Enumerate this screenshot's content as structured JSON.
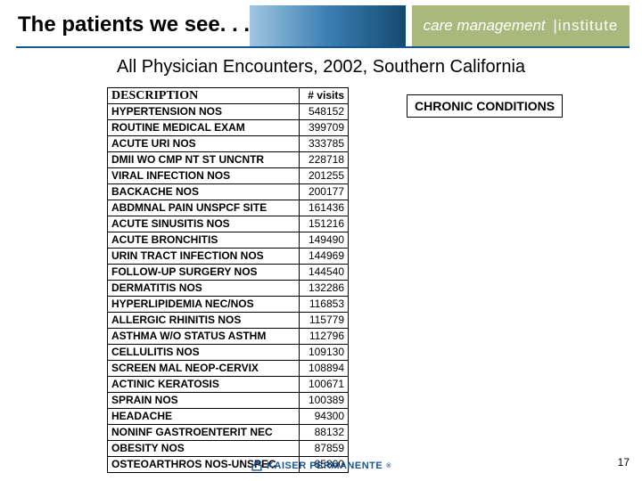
{
  "header": {
    "title": "The patients we see. . .",
    "logo_care": "care management",
    "logo_inst": "institute"
  },
  "subtitle": "All Physician Encounters, 2002, Southern California",
  "table": {
    "col_desc": "DESCRIPTION",
    "col_visits": "# visits",
    "rows": [
      {
        "desc": "HYPERTENSION NOS",
        "visits": "548152"
      },
      {
        "desc": "ROUTINE MEDICAL EXAM",
        "visits": "399709"
      },
      {
        "desc": "ACUTE URI NOS",
        "visits": "333785"
      },
      {
        "desc": "DMII WO CMP NT ST UNCNTR",
        "visits": "228718"
      },
      {
        "desc": "VIRAL INFECTION NOS",
        "visits": "201255"
      },
      {
        "desc": "BACKACHE NOS",
        "visits": "200177"
      },
      {
        "desc": "ABDMNAL PAIN UNSPCF SITE",
        "visits": "161436"
      },
      {
        "desc": "ACUTE SINUSITIS NOS",
        "visits": "151216"
      },
      {
        "desc": "ACUTE BRONCHITIS",
        "visits": "149490"
      },
      {
        "desc": "URIN TRACT INFECTION NOS",
        "visits": "144969"
      },
      {
        "desc": "FOLLOW-UP SURGERY NOS",
        "visits": "144540"
      },
      {
        "desc": "DERMATITIS NOS",
        "visits": "132286"
      },
      {
        "desc": "HYPERLIPIDEMIA NEC/NOS",
        "visits": "116853"
      },
      {
        "desc": "ALLERGIC RHINITIS NOS",
        "visits": "115779"
      },
      {
        "desc": "ASTHMA W/O STATUS ASTHM",
        "visits": "112796"
      },
      {
        "desc": "CELLULITIS NOS",
        "visits": "109130"
      },
      {
        "desc": "SCREEN MAL NEOP-CERVIX",
        "visits": "108894"
      },
      {
        "desc": "ACTINIC KERATOSIS",
        "visits": "100671"
      },
      {
        "desc": "SPRAIN NOS",
        "visits": "100389"
      },
      {
        "desc": "HEADACHE",
        "visits": "94300"
      },
      {
        "desc": "NONINF GASTROENTERIT NEC",
        "visits": "88132"
      },
      {
        "desc": "OBESITY NOS",
        "visits": "87859"
      },
      {
        "desc": "OSTEOARTHROS NOS-UNSPEC",
        "visits": "85860"
      }
    ]
  },
  "chronic_label": "CHRONIC CONDITIONS",
  "footer_logo": "KAISER PERMANENTE",
  "page_number": "17"
}
